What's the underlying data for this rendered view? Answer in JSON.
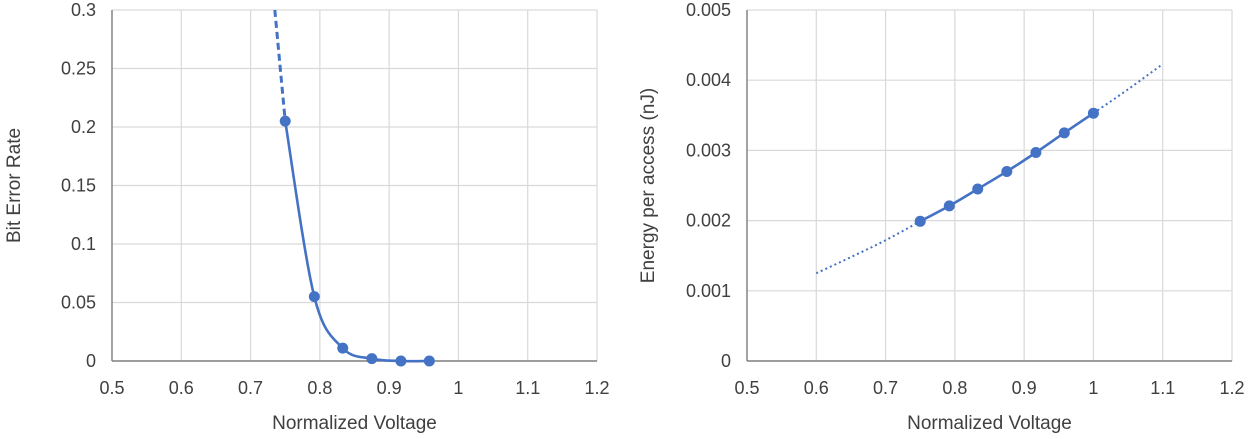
{
  "chart_data": [
    {
      "type": "line",
      "title": "",
      "xlabel": "Normalized Voltage",
      "ylabel": "Bit Error Rate",
      "xlim": [
        0.5,
        1.2
      ],
      "ylim": [
        0,
        0.3
      ],
      "x_ticks": [
        "0.5",
        "0.6",
        "0.7",
        "0.8",
        "0.9",
        "1",
        "1.1",
        "1.2"
      ],
      "y_ticks": [
        "0",
        "0.05",
        "0.1",
        "0.15",
        "0.2",
        "0.25",
        "0.3"
      ],
      "grid": true,
      "legend": "none",
      "color": "#4472C4",
      "series": [
        {
          "x": [
            0.75,
            0.792,
            0.833,
            0.875,
            0.917,
            0.958
          ],
          "y": [
            0.205,
            0.055,
            0.011,
            0.002,
            0.0,
            0.0
          ],
          "style": "solid with markers"
        },
        {
          "x": [
            0.735,
            0.75
          ],
          "y": [
            0.3,
            0.205
          ],
          "style": "dashed"
        }
      ]
    },
    {
      "type": "line",
      "title": "",
      "xlabel": "Normalized Voltage",
      "ylabel": "Energy per access (nJ)",
      "xlim": [
        0.5,
        1.2
      ],
      "ylim": [
        0,
        0.005
      ],
      "x_ticks": [
        "0.5",
        "0.6",
        "0.7",
        "0.8",
        "0.9",
        "1",
        "1.1",
        "1.2"
      ],
      "y_ticks": [
        "0",
        "0.001",
        "0.002",
        "0.003",
        "0.004",
        "0.005"
      ],
      "grid": true,
      "legend": "none",
      "color": "#4472C4",
      "series": [
        {
          "x": [
            0.75,
            0.792,
            0.833,
            0.875,
            0.917,
            0.958,
            1.0
          ],
          "y": [
            0.00199,
            0.00221,
            0.00245,
            0.0027,
            0.00297,
            0.00325,
            0.00353
          ],
          "style": "solid with markers"
        },
        {
          "x": [
            0.6,
            0.65,
            0.7,
            0.75
          ],
          "y": [
            0.00125,
            0.00148,
            0.00172,
            0.00199
          ],
          "style": "dotted"
        },
        {
          "x": [
            1.0,
            1.05,
            1.1
          ],
          "y": [
            0.00353,
            0.00387,
            0.00423
          ],
          "style": "dotted"
        }
      ]
    }
  ]
}
